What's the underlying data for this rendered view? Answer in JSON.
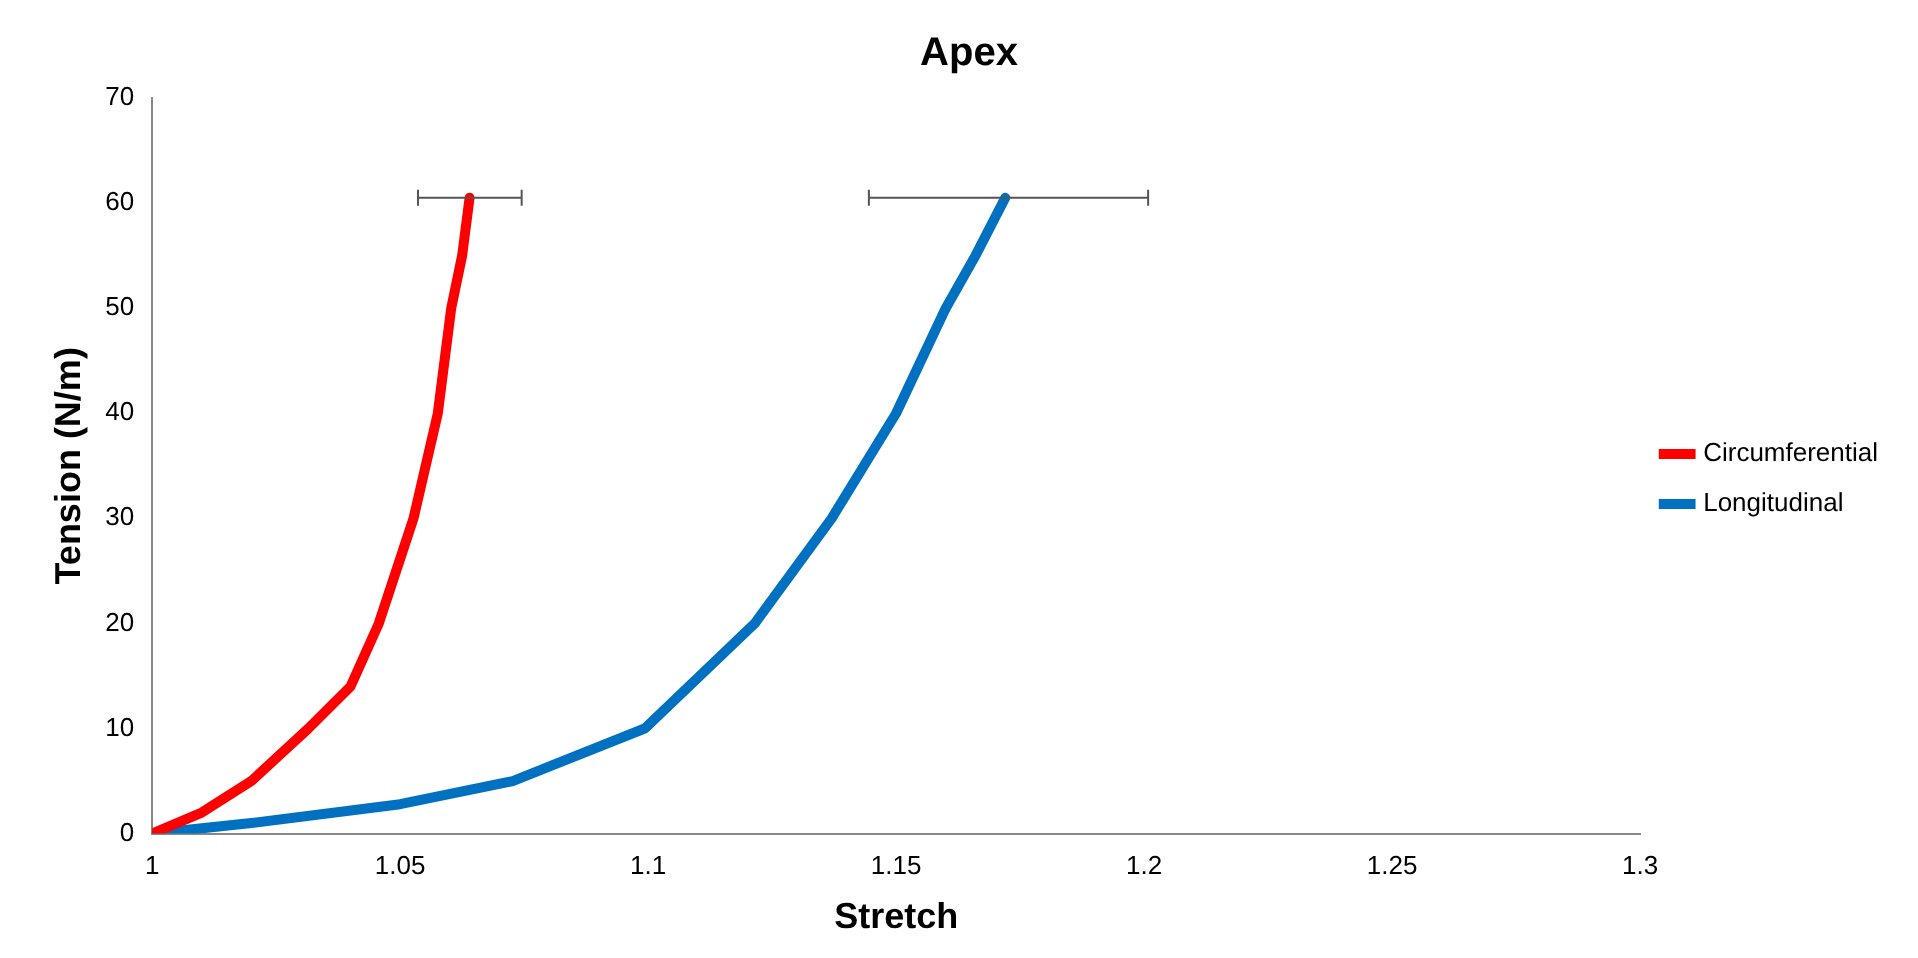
{
  "chart_data": {
    "type": "line",
    "title": "Apex",
    "xlabel": "Stretch",
    "ylabel": "Tension (N/m)",
    "xlim": [
      1,
      1.3
    ],
    "xticks": [
      1,
      1.05,
      1.1,
      1.15,
      1.2,
      1.25,
      1.3
    ],
    "ylim": [
      0,
      70
    ],
    "yticks": [
      0,
      10,
      20,
      30,
      40,
      50,
      60,
      70
    ],
    "grid": false,
    "legend": "right",
    "marker": "none",
    "line_style": "solid",
    "series": [
      {
        "name": "Circumferential",
        "color": "#ff0000",
        "x": [
          1,
          1.01,
          1.02,
          1.0315,
          1.04,
          1.0457,
          1.0527,
          1.0576,
          1.0603,
          1.0625,
          1.064
        ],
        "values": [
          0,
          2,
          5,
          10,
          14,
          20,
          30,
          40,
          50,
          55,
          60.5
        ],
        "xerrors": [
          null,
          null,
          null,
          null,
          null,
          null,
          null,
          null,
          null,
          null,
          [
            1.0536,
            1.0745
          ]
        ]
      },
      {
        "name": "Longitudinal",
        "color": "#0070c0",
        "x": [
          1,
          1.02,
          1.05,
          1.0727,
          1.0993,
          1.1215,
          1.137,
          1.15,
          1.16,
          1.166,
          1.172
        ],
        "values": [
          0,
          1,
          2.8,
          5,
          10,
          20,
          30,
          40,
          50,
          55,
          60.5
        ],
        "xerrors": [
          null,
          null,
          null,
          null,
          null,
          null,
          null,
          null,
          null,
          null,
          [
            1.1445,
            1.2008
          ]
        ]
      }
    ]
  }
}
